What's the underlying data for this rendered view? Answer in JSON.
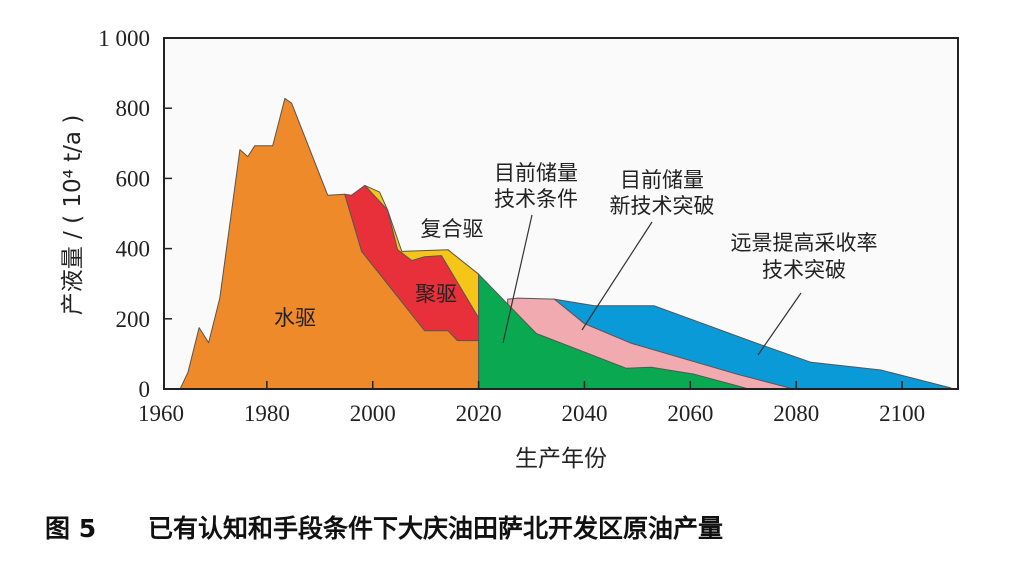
{
  "chart_data": {
    "type": "area",
    "caption_number": "图 5",
    "caption": "已有认知和手段条件下大庆油田萨北开发区原油产量",
    "xlabel": "生产年份",
    "ylabel": "产液量 / ( 10⁴ t/a )",
    "xlim": [
      1960,
      2110
    ],
    "ylim": [
      0,
      1000
    ],
    "x_ticks": [
      1960,
      1980,
      2000,
      2020,
      2040,
      2060,
      2080,
      2100
    ],
    "x_tick_labels": [
      "1960",
      "1980",
      "2000",
      "2020",
      "2040",
      "2060",
      "2080",
      "2100"
    ],
    "y_ticks": [
      0,
      200,
      400,
      600,
      800,
      1000
    ],
    "y_tick_labels": [
      "0",
      "200",
      "400",
      "600",
      "800",
      "1 000"
    ],
    "grid": false,
    "stacked": true,
    "series": [
      {
        "name": "水驱",
        "color": "#ef8a2a",
        "upper": [
          [
            1963.6,
            0
          ],
          [
            1965.1,
            48
          ],
          [
            1967.2,
            175
          ],
          [
            1969,
            132
          ],
          [
            1971.1,
            259
          ],
          [
            1974.9,
            682
          ],
          [
            1976.4,
            662
          ],
          [
            1977.7,
            693
          ],
          [
            1981.1,
            693
          ],
          [
            1983.4,
            828
          ],
          [
            1984.7,
            814
          ],
          [
            1991.5,
            552
          ],
          [
            1994.7,
            555
          ],
          [
            1997.9,
            392
          ],
          [
            2009.8,
            166
          ],
          [
            2014.2,
            166
          ],
          [
            2016,
            138
          ],
          [
            2020,
            138
          ],
          [
            2020,
            0
          ]
        ]
      },
      {
        "name": "聚驱",
        "color": "#e8303a",
        "upper": [
          [
            1994.7,
            555
          ],
          [
            1996,
            552
          ],
          [
            1998.5,
            580
          ],
          [
            2002.8,
            510
          ],
          [
            2004.7,
            397
          ],
          [
            2007.4,
            366
          ],
          [
            2009.8,
            377
          ],
          [
            2013,
            380
          ],
          [
            2020,
            203
          ],
          [
            2020,
            0
          ]
        ]
      },
      {
        "name": "复合驱",
        "color": "#f5c518",
        "upper": [
          [
            1998.5,
            580
          ],
          [
            2001.3,
            561
          ],
          [
            2002.8,
            510
          ],
          [
            2005.5,
            392
          ],
          [
            2014.2,
            397
          ],
          [
            2020,
            327
          ],
          [
            2020,
            0
          ]
        ]
      },
      {
        "name": "目前储量技术条件",
        "color": "#0aa850",
        "upper": [
          [
            2020,
            0
          ],
          [
            2020,
            327
          ],
          [
            2030.9,
            158
          ],
          [
            2047.9,
            59
          ],
          [
            2052.6,
            62
          ],
          [
            2060.8,
            42
          ],
          [
            2069.6,
            6
          ],
          [
            2071,
            0
          ]
        ]
      },
      {
        "name": "目前储量新技术突破",
        "color": "#f0aab0",
        "upper": [
          [
            2025.5,
            256
          ],
          [
            2027.4,
            259
          ],
          [
            2034.3,
            256
          ],
          [
            2040,
            186
          ],
          [
            2048.9,
            130
          ],
          [
            2068.9,
            42
          ],
          [
            2078.7,
            3
          ],
          [
            2079,
            0
          ]
        ]
      },
      {
        "name": "远景提高采收率技术突破",
        "color": "#0a9ad8",
        "upper": [
          [
            2034.3,
            256
          ],
          [
            2041.9,
            237
          ],
          [
            2053.2,
            237
          ],
          [
            2072.6,
            130
          ],
          [
            2082.8,
            76
          ],
          [
            2096,
            54
          ],
          [
            2109.2,
            3
          ],
          [
            2109.5,
            0
          ]
        ]
      }
    ],
    "annotations": {
      "water": "水驱",
      "polymer": "聚驱",
      "asp": "复合驱",
      "current_l1": "目前储量",
      "current_l2": "技术条件",
      "newtech_l1": "目前储量",
      "newtech_l2": "新技术突破",
      "eor_l1": "远景提高采收率",
      "eor_l2": "技术突破"
    }
  }
}
